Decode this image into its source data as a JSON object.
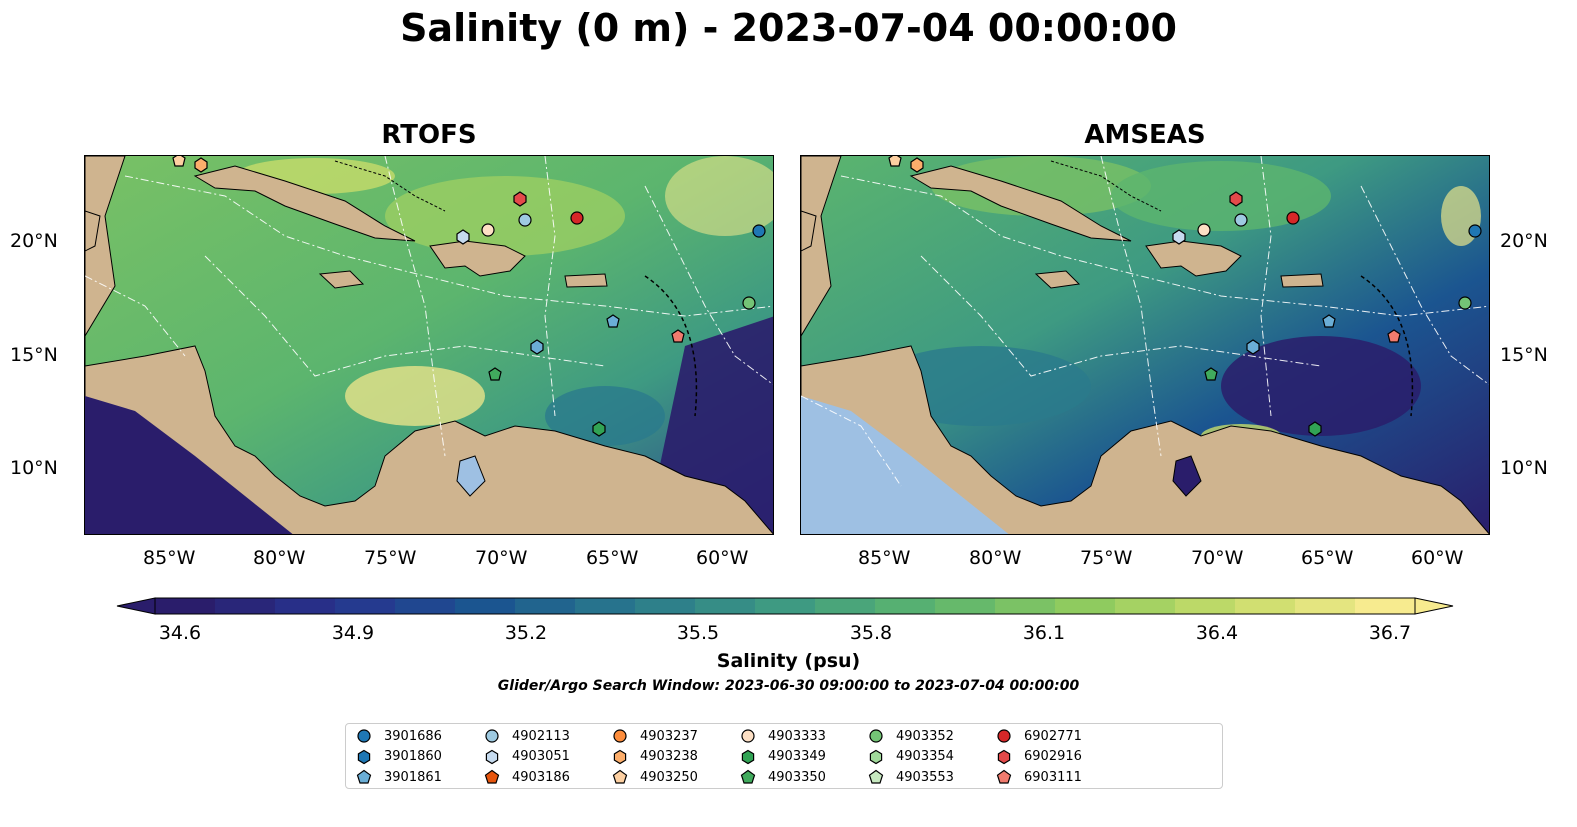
{
  "title": "Salinity (0 m) - 2023-07-04 00:00:00",
  "panels": [
    {
      "title": "RTOFS"
    },
    {
      "title": "AMSEAS"
    }
  ],
  "x_ticks": [
    "85°W",
    "80°W",
    "75°W",
    "70°W",
    "65°W",
    "60°W"
  ],
  "y_ticks": [
    "20°N",
    "15°N",
    "10°N"
  ],
  "colorbar": {
    "ticks": [
      "34.6",
      "34.9",
      "35.2",
      "35.5",
      "35.8",
      "36.1",
      "36.4",
      "36.7"
    ],
    "label": "Salinity (psu)",
    "colormap": [
      "#2a1d6b",
      "#27338f",
      "#1b5590",
      "#2a7a8c",
      "#3e9a82",
      "#5cb56e",
      "#8fcb5f",
      "#c7dc6a",
      "#f7eb8f"
    ],
    "extend": "both"
  },
  "search_window": "Glider/Argo Search Window: 2023-06-30 09:00:00 to 2023-07-04 00:00:00",
  "legend": [
    {
      "id": "3901686",
      "marker": "circle",
      "color": "#1f77b4"
    },
    {
      "id": "3901860",
      "marker": "hexagon",
      "color": "#1f77b4"
    },
    {
      "id": "3901861",
      "marker": "pentagon",
      "color": "#6baed6"
    },
    {
      "id": "4902113",
      "marker": "circle",
      "color": "#9ecae1"
    },
    {
      "id": "4903051",
      "marker": "hexagon",
      "color": "#c6dbef"
    },
    {
      "id": "4903186",
      "marker": "pentagon",
      "color": "#e6550d"
    },
    {
      "id": "4903237",
      "marker": "circle",
      "color": "#fd8d3c"
    },
    {
      "id": "4903238",
      "marker": "hexagon",
      "color": "#fdae6b"
    },
    {
      "id": "4903250",
      "marker": "pentagon",
      "color": "#fdd0a2"
    },
    {
      "id": "4903333",
      "marker": "circle",
      "color": "#fde0c5"
    },
    {
      "id": "4903349",
      "marker": "hexagon",
      "color": "#31a354"
    },
    {
      "id": "4903350",
      "marker": "pentagon",
      "color": "#41ab5d"
    },
    {
      "id": "4903352",
      "marker": "circle",
      "color": "#74c476"
    },
    {
      "id": "4903354",
      "marker": "hexagon",
      "color": "#a1d99b"
    },
    {
      "id": "4903553",
      "marker": "pentagon",
      "color": "#c7e9c0"
    },
    {
      "id": "6902771",
      "marker": "circle",
      "color": "#d62728"
    },
    {
      "id": "6902916",
      "marker": "hexagon",
      "color": "#e34a4a"
    },
    {
      "id": "6903111",
      "marker": "pentagon",
      "color": "#f07b6e"
    }
  ]
}
